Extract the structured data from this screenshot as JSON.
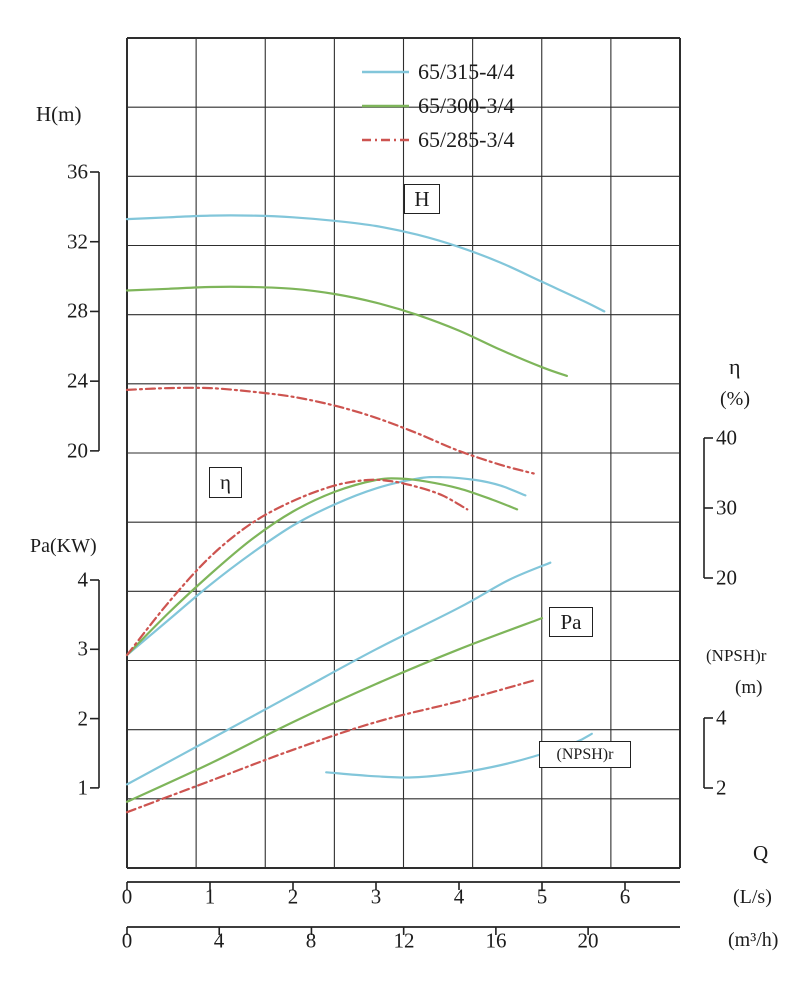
{
  "legend": [
    {
      "label": "65/315-4/4",
      "color": "#82c6da",
      "style": "solid"
    },
    {
      "label": "65/300-3/4",
      "color": "#7eb55a",
      "style": "solid"
    },
    {
      "label": "65/285-3/4",
      "color": "#cd5450",
      "style": "dashdot"
    }
  ],
  "axes": {
    "h": {
      "label": "H(m)",
      "ticks": [
        "36",
        "32",
        "28",
        "24",
        "20"
      ]
    },
    "pa": {
      "label": "Pa(KW)",
      "ticks": [
        "4",
        "3",
        "2",
        "1"
      ]
    },
    "eta": {
      "label": "η",
      "unit": "(%)",
      "ticks": [
        "40",
        "30",
        "20"
      ]
    },
    "npsh": {
      "label": "(NPSH)r",
      "unit": "(m)",
      "ticks": [
        "4",
        "2"
      ]
    },
    "q": {
      "label": "Q",
      "ls_unit": "(L/s)",
      "ls_ticks": [
        "0",
        "1",
        "2",
        "3",
        "4",
        "5",
        "6"
      ],
      "m3h_unit": "(m³/h)",
      "m3h_ticks": [
        "0",
        "4",
        "8",
        "12",
        "16",
        "20"
      ]
    }
  },
  "curve_labels": {
    "h": "H",
    "eta": "η",
    "pa": "Pa",
    "npsh": "(NPSH)r"
  },
  "chart_data": {
    "type": "line",
    "x_axis": {
      "label": "Q",
      "units": [
        "(L/s)",
        "(m³/h)"
      ],
      "ls_ticks": [
        0,
        1,
        2,
        3,
        4,
        5,
        6
      ],
      "m3h_ticks": [
        0,
        4,
        8,
        12,
        16,
        20
      ],
      "x_range_ls": [
        0,
        6.66
      ]
    },
    "legend": [
      {
        "label": "65/315-4/4",
        "color": "#82c6da",
        "style": "solid"
      },
      {
        "label": "65/300-3/4",
        "color": "#7eb55a",
        "style": "solid"
      },
      {
        "label": "65/285-3/4",
        "color": "#cd5450",
        "style": "dashdot"
      }
    ],
    "panels": [
      {
        "id": "H",
        "y_label": "H(m)",
        "y_ticks": [
          36,
          32,
          28,
          24,
          20
        ],
        "series": [
          {
            "name": "65/315-4/4",
            "points": [
              [
                0,
                33.3
              ],
              [
                0.5,
                33.4
              ],
              [
                1,
                33.5
              ],
              [
                1.5,
                33.5
              ],
              [
                2,
                33.4
              ],
              [
                2.5,
                33.2
              ],
              [
                3,
                32.9
              ],
              [
                3.5,
                32.4
              ],
              [
                4,
                31.7
              ],
              [
                4.5,
                30.8
              ],
              [
                5,
                29.7
              ],
              [
                5.5,
                28.6
              ],
              [
                5.75,
                28.0
              ]
            ]
          },
          {
            "name": "65/300-3/4",
            "points": [
              [
                0,
                29.2
              ],
              [
                0.5,
                29.3
              ],
              [
                1,
                29.4
              ],
              [
                1.5,
                29.4
              ],
              [
                2,
                29.3
              ],
              [
                2.5,
                29.0
              ],
              [
                3,
                28.5
              ],
              [
                3.5,
                27.8
              ],
              [
                4,
                26.9
              ],
              [
                4.5,
                25.8
              ],
              [
                5,
                24.8
              ],
              [
                5.3,
                24.3
              ]
            ]
          },
          {
            "name": "65/285-3/4",
            "points": [
              [
                0,
                23.5
              ],
              [
                0.5,
                23.6
              ],
              [
                1,
                23.6
              ],
              [
                1.5,
                23.4
              ],
              [
                2,
                23.1
              ],
              [
                2.5,
                22.6
              ],
              [
                3,
                21.9
              ],
              [
                3.5,
                21.0
              ],
              [
                4,
                20.0
              ],
              [
                4.5,
                19.2
              ],
              [
                4.9,
                18.7
              ]
            ]
          }
        ]
      },
      {
        "id": "eta",
        "y_label": "η (%)",
        "y_ticks": [
          40,
          30,
          20
        ],
        "series": [
          {
            "name": "65/315-4/4",
            "points": [
              [
                0,
                9
              ],
              [
                0.5,
                14
              ],
              [
                1,
                19
              ],
              [
                1.5,
                23.5
              ],
              [
                2,
                27.5
              ],
              [
                2.5,
                30.5
              ],
              [
                3,
                32.8
              ],
              [
                3.5,
                34.2
              ],
              [
                3.8,
                34.4
              ],
              [
                4.2,
                34.0
              ],
              [
                4.5,
                33.2
              ],
              [
                4.8,
                31.8
              ]
            ]
          },
          {
            "name": "65/300-3/4",
            "points": [
              [
                0,
                9
              ],
              [
                0.5,
                15
              ],
              [
                1,
                20.5
              ],
              [
                1.5,
                25.5
              ],
              [
                2,
                29.5
              ],
              [
                2.5,
                32.3
              ],
              [
                3,
                34.0
              ],
              [
                3.3,
                34.2
              ],
              [
                3.6,
                33.8
              ],
              [
                4,
                32.8
              ],
              [
                4.4,
                31.2
              ],
              [
                4.7,
                29.8
              ]
            ]
          },
          {
            "name": "65/285-3/4",
            "points": [
              [
                0,
                9
              ],
              [
                0.5,
                16.5
              ],
              [
                1,
                23
              ],
              [
                1.5,
                27.8
              ],
              [
                2,
                31
              ],
              [
                2.5,
                33.2
              ],
              [
                2.9,
                34.0
              ],
              [
                3.2,
                33.8
              ],
              [
                3.5,
                33.0
              ],
              [
                3.8,
                31.8
              ],
              [
                4.1,
                29.8
              ]
            ]
          }
        ]
      },
      {
        "id": "Pa",
        "y_label": "Pa(KW)",
        "y_ticks": [
          4,
          3,
          2,
          1
        ],
        "series": [
          {
            "name": "65/315-4/4",
            "points": [
              [
                0,
                1.05
              ],
              [
                1,
                1.7
              ],
              [
                2,
                2.35
              ],
              [
                3,
                3.0
              ],
              [
                4,
                3.6
              ],
              [
                4.6,
                4.0
              ],
              [
                5.1,
                4.25
              ]
            ]
          },
          {
            "name": "65/300-3/4",
            "points": [
              [
                0,
                0.8
              ],
              [
                1,
                1.35
              ],
              [
                2,
                1.95
              ],
              [
                3,
                2.5
              ],
              [
                4,
                3.0
              ],
              [
                5,
                3.45
              ]
            ]
          },
          {
            "name": "65/285-3/4",
            "points": [
              [
                0,
                0.65
              ],
              [
                1,
                1.1
              ],
              [
                2,
                1.55
              ],
              [
                3,
                1.95
              ],
              [
                4,
                2.25
              ],
              [
                4.9,
                2.55
              ]
            ]
          }
        ]
      },
      {
        "id": "NPSH",
        "y_label": "(NPSH)r (m)",
        "y_ticks": [
          4,
          2
        ],
        "series": [
          {
            "name": "65/315-4/4",
            "points": [
              [
                2.4,
                2.45
              ],
              [
                2.9,
                2.35
              ],
              [
                3.4,
                2.3
              ],
              [
                3.9,
                2.4
              ],
              [
                4.4,
                2.6
              ],
              [
                4.9,
                2.9
              ],
              [
                5.4,
                3.3
              ],
              [
                5.6,
                3.55
              ]
            ]
          }
        ]
      }
    ]
  }
}
